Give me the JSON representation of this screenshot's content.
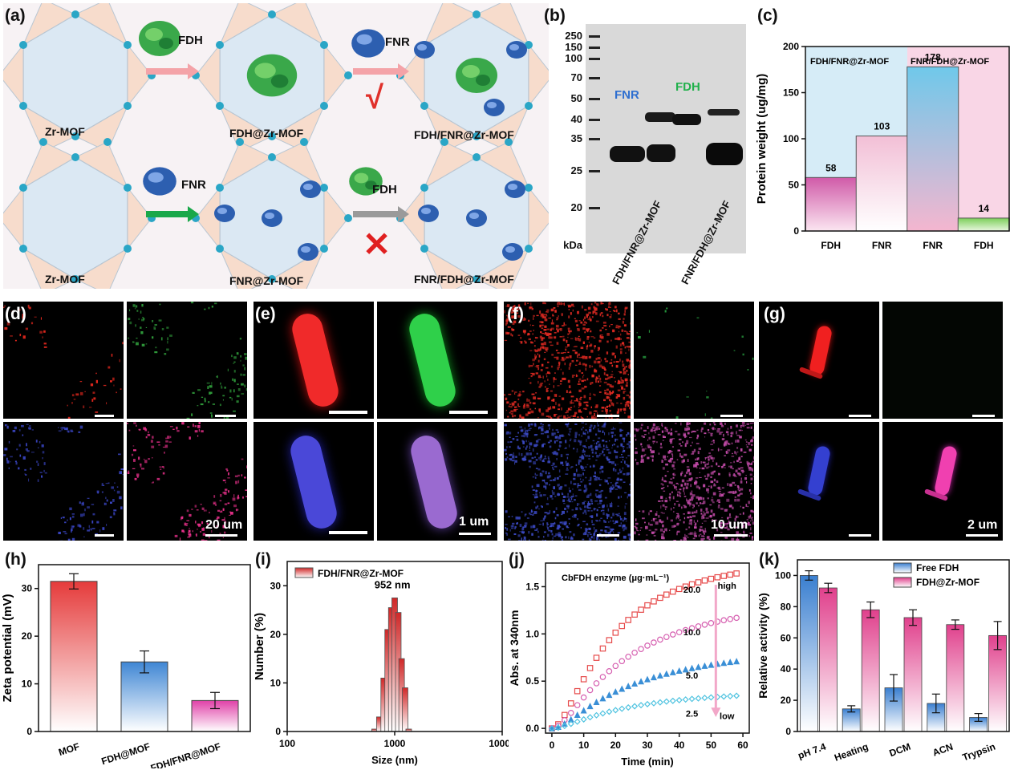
{
  "panel_labels": {
    "a": "(a)",
    "b": "(b)",
    "c": "(c)",
    "d": "(d)",
    "e": "(e)",
    "f": "(f)",
    "g": "(g)",
    "h": "(h)",
    "i": "(i)",
    "j": "(j)",
    "k": "(k)"
  },
  "panel_a": {
    "row1": {
      "start": "Zr-MOF",
      "step1_enzyme": "FDH",
      "middle": "FDH@Zr-MOF",
      "step2_enzyme": "FNR",
      "step2_mark": "√",
      "end": "FDH/FNR@Zr-MOF"
    },
    "row2": {
      "start": "Zr-MOF",
      "step1_enzyme": "FNR",
      "middle": "FNR@Zr-MOF",
      "step2_enzyme": "FDH",
      "step2_mark": "✕",
      "end": "FNR/FDH@Zr-MOF"
    },
    "colors": {
      "pink_arrow": "#f4a3a8",
      "green_arrow": "#1aa84a",
      "gray_arrow": "#9a9a9a",
      "fdh": "#2fa84a",
      "fnr": "#2e5fb0",
      "cross": "#e02020",
      "check": "#e0302a"
    }
  },
  "panel_b": {
    "ladder": [
      "250",
      "150",
      "100",
      "70",
      "50",
      "40",
      "35",
      "25",
      "20"
    ],
    "unit": "kDa",
    "lanes": [
      "FDH/FNR@Zr-MOF",
      "FNR/FDH@Zr-MOF"
    ],
    "band_labels": {
      "fnr": "FNR",
      "fdh": "FDH"
    },
    "colors": {
      "fnr": "#2e6fd0",
      "fdh": "#22b14c"
    }
  },
  "panel_c": {
    "section_titles": [
      "FDH/FNR@Zr-MOF",
      "FNR/FDH@Zr-MOF"
    ],
    "colors": {
      "left_bg": "#d6ecf7",
      "right_bg": "#f9d6e6"
    }
  },
  "scale_bars": {
    "d": "20 um",
    "e": "1 um",
    "f": "10 um",
    "g": "2 um"
  },
  "chart_data": [
    {
      "id": "c",
      "type": "bar",
      "title": "",
      "categories": [
        "FDH",
        "FNR",
        "FNR",
        "FDH"
      ],
      "values": [
        58,
        103,
        178,
        14
      ],
      "value_labels": [
        "58",
        "103",
        "178",
        "14"
      ],
      "ylabel": "Protein weight (ug/mg)",
      "xlabel": "",
      "ylim": [
        0,
        200
      ],
      "yticks": [
        "0",
        "50",
        "100",
        "150",
        "200"
      ]
    },
    {
      "id": "h",
      "type": "bar",
      "categories": [
        "MOF",
        "FDH@MOF",
        "FDH/FNR@MOF"
      ],
      "values": [
        31.5,
        14.6,
        6.5
      ],
      "errors": [
        1.6,
        2.3,
        1.7
      ],
      "ylabel": "Zeta potential (mV)",
      "ylim": [
        0,
        35
      ],
      "yticks": [
        "0",
        "10",
        "20",
        "30"
      ]
    },
    {
      "id": "i",
      "type": "bar",
      "legend": "FDH/FNR@Zr-MOF",
      "annotation": "952 nm",
      "x": [
        650,
        720,
        790,
        860,
        930,
        1000,
        1080,
        1160,
        1250,
        1350
      ],
      "values": [
        0.5,
        3,
        11,
        21,
        25.5,
        27.5,
        24.5,
        15,
        9,
        0.5
      ],
      "xlabel": "Size (nm)",
      "ylabel": "Number (%)",
      "xlim": [
        100,
        10000
      ],
      "xticks": [
        "100",
        "1000",
        "10000"
      ],
      "ylim": [
        0,
        35
      ],
      "yticks": [
        "0",
        "10",
        "20",
        "30"
      ]
    },
    {
      "id": "j",
      "type": "scatter",
      "title": "CbFDH enzyme (μg·mL⁻¹)",
      "xlabel": "Time (min)",
      "ylabel": "Abs. at 340nm",
      "xlim": [
        -2,
        62
      ],
      "xticks": [
        "0",
        "10",
        "20",
        "30",
        "40",
        "50",
        "60"
      ],
      "ylim": [
        -0.05,
        1.75
      ],
      "yticks": [
        "0.0",
        "0.5",
        "1.0",
        "1.5"
      ],
      "arrow_labels": {
        "top": "high",
        "bottom": "low"
      },
      "series": [
        {
          "name": "20.0",
          "final": 1.64,
          "k": 0.045,
          "color": "#e64a4a",
          "marker": "square"
        },
        {
          "name": "10.0",
          "final": 1.17,
          "k": 0.036,
          "color": "#d65fb0",
          "marker": "circle"
        },
        {
          "name": "5.0",
          "final": 0.71,
          "k": 0.033,
          "color": "#3a8fd6",
          "marker": "triangle"
        },
        {
          "name": "2.5",
          "final": 0.345,
          "k": 0.035,
          "color": "#4fc3e0",
          "marker": "diamond"
        }
      ]
    },
    {
      "id": "k",
      "type": "bar",
      "categories": [
        "pH 7.4",
        "Heating",
        "DCM",
        "ACN",
        "Trypsin"
      ],
      "series": [
        {
          "name": "Free FDH",
          "values": [
            100,
            14.5,
            28,
            18,
            9
          ],
          "errors": [
            3,
            2,
            8.5,
            6,
            2.5
          ],
          "color": "#3a7fd0"
        },
        {
          "name": "FDH@Zr-MOF",
          "values": [
            92,
            78,
            73,
            68.5,
            61.5
          ],
          "errors": [
            3,
            5,
            5,
            3,
            9
          ],
          "color": "#e0408c"
        }
      ],
      "ylabel": "Relative activity (%)",
      "ylim": [
        0,
        110
      ],
      "yticks": [
        "0",
        "20",
        "40",
        "60",
        "80",
        "100"
      ]
    }
  ]
}
